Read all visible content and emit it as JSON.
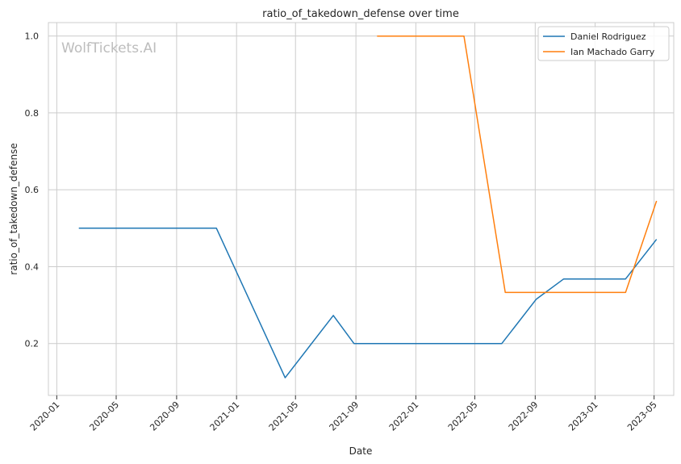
{
  "chart_data": {
    "type": "line",
    "title": "ratio_of_takedown_defense over time",
    "xlabel": "Date",
    "ylabel": "ratio_of_takedown_defense",
    "watermark": "WolfTickets.AI",
    "xlim": [
      "2019-12-15",
      "2023-06-10"
    ],
    "ylim": [
      0.065,
      1.035
    ],
    "x_ticks": [
      "2020-01-01",
      "2020-05-01",
      "2020-09-01",
      "2021-01-01",
      "2021-05-01",
      "2021-09-01",
      "2022-01-01",
      "2022-05-01",
      "2022-09-01",
      "2023-01-01",
      "2023-05-01"
    ],
    "x_tick_labels": [
      "2020-01",
      "2020-05",
      "2020-09",
      "2021-01",
      "2021-05",
      "2021-09",
      "2022-01",
      "2022-05",
      "2022-09",
      "2023-01",
      "2023-05"
    ],
    "y_ticks": [
      0.2,
      0.4,
      0.6,
      0.8,
      1.0
    ],
    "y_tick_labels": [
      "0.2",
      "0.4",
      "0.6",
      "0.8",
      "1.0"
    ],
    "grid": true,
    "legend_position": "top-right",
    "series": [
      {
        "name": "Daniel Rodriguez",
        "color": "#1f77b4",
        "points": [
          {
            "x": "2020-02-15",
            "y": 0.5
          },
          {
            "x": "2020-11-21",
            "y": 0.5
          },
          {
            "x": "2021-04-10",
            "y": 0.111
          },
          {
            "x": "2021-07-17",
            "y": 0.273
          },
          {
            "x": "2021-08-28",
            "y": 0.2
          },
          {
            "x": "2022-06-25",
            "y": 0.2
          },
          {
            "x": "2022-09-03",
            "y": 0.315
          },
          {
            "x": "2022-10-29",
            "y": 0.368
          },
          {
            "x": "2023-03-04",
            "y": 0.368
          },
          {
            "x": "2023-05-06",
            "y": 0.471
          }
        ]
      },
      {
        "name": "Ian Machado Garry",
        "color": "#ff7f0e",
        "points": [
          {
            "x": "2021-10-14",
            "y": 1.0
          },
          {
            "x": "2022-04-09",
            "y": 1.0
          },
          {
            "x": "2022-07-02",
            "y": 0.333
          },
          {
            "x": "2023-03-04",
            "y": 0.333
          },
          {
            "x": "2023-05-06",
            "y": 0.571
          }
        ]
      }
    ]
  }
}
